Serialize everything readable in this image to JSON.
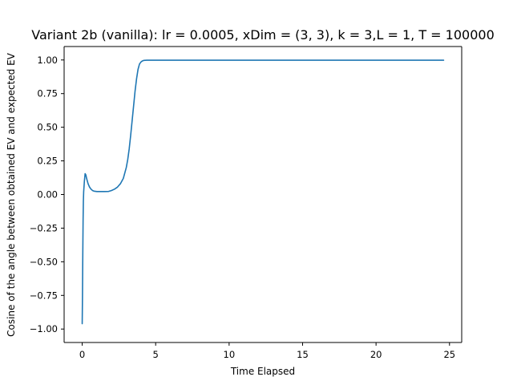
{
  "chart_data": {
    "type": "line",
    "title": "Variant 2b (vanilla): lr = 0.0005, xDim = (3, 3), k = 3,L = 1, T = 100000",
    "xlabel": "Time Elapsed",
    "ylabel": "Cosine of the angle between obtained EV and expected EV",
    "xlim": [
      -1.23,
      25.83
    ],
    "ylim": [
      -1.1,
      1.1
    ],
    "xticks": [
      0,
      5,
      10,
      15,
      20,
      25
    ],
    "xtick_labels": [
      "0",
      "5",
      "10",
      "15",
      "20",
      "25"
    ],
    "yticks": [
      -1.0,
      -0.75,
      -0.5,
      -0.25,
      0.0,
      0.25,
      0.5,
      0.75,
      1.0
    ],
    "ytick_labels": [
      "−1.00",
      "−0.75",
      "−0.50",
      "−0.25",
      "0.00",
      "0.25",
      "0.50",
      "0.75",
      "1.00"
    ],
    "grid": false,
    "series": [
      {
        "name": "cosine",
        "color": "#1f77b4",
        "x": [
          0,
          0.02,
          0.04,
          0.06,
          0.08,
          0.1,
          0.15,
          0.2,
          0.25,
          0.3,
          0.4,
          0.5,
          0.6,
          0.7,
          0.8,
          1.0,
          1.2,
          1.5,
          1.8,
          2.0,
          2.2,
          2.4,
          2.6,
          2.8,
          3.0,
          3.1,
          3.2,
          3.3,
          3.4,
          3.5,
          3.6,
          3.7,
          3.8,
          3.9,
          4.0,
          4.1,
          4.2,
          4.4,
          4.6,
          5.0,
          6,
          8,
          10,
          12,
          15,
          18,
          20,
          22,
          24,
          24.6
        ],
        "values": [
          -0.96,
          -0.75,
          -0.45,
          -0.2,
          -0.05,
          0.02,
          0.1,
          0.155,
          0.145,
          0.12,
          0.08,
          0.055,
          0.04,
          0.03,
          0.025,
          0.022,
          0.022,
          0.022,
          0.023,
          0.03,
          0.04,
          0.055,
          0.08,
          0.12,
          0.2,
          0.26,
          0.34,
          0.44,
          0.55,
          0.66,
          0.77,
          0.86,
          0.93,
          0.97,
          0.985,
          0.993,
          0.997,
          0.998,
          0.998,
          0.998,
          0.998,
          0.998,
          0.998,
          0.998,
          0.998,
          0.998,
          0.998,
          0.998,
          0.998,
          0.998
        ]
      }
    ]
  }
}
